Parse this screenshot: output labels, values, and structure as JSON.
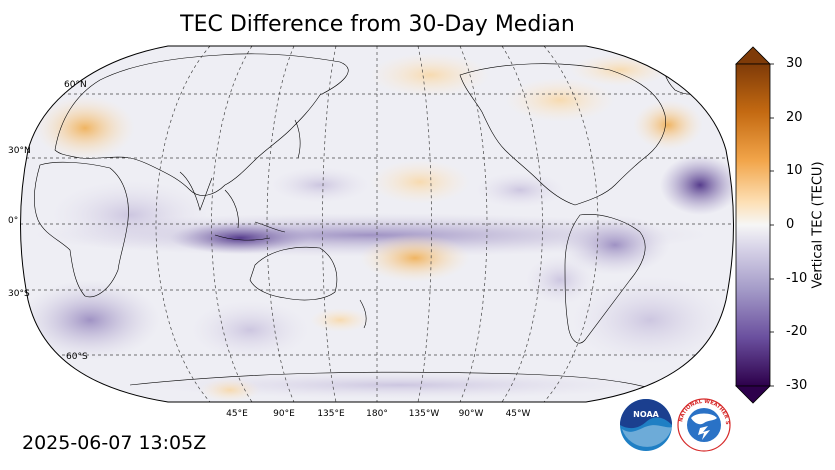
{
  "title": "TEC Difference from 30-Day Median",
  "timestamp": "2025-06-07 13:05Z",
  "map": {
    "projection": "Robinson",
    "central_longitude": "180°",
    "lat_labels": [
      "60°N",
      "30°N",
      "0°",
      "30°S",
      "60°S"
    ],
    "lon_labels": [
      "45°E",
      "90°E",
      "135°E",
      "180°",
      "135°W",
      "90°W",
      "45°W"
    ],
    "gridlines": "dashed"
  },
  "colorbar": {
    "label": "Vertical TEC (TECU)",
    "ticks": [
      "30",
      "20",
      "10",
      "0",
      "-10",
      "-20",
      "-30"
    ],
    "range": [
      -30,
      30
    ],
    "colormap": "PuOr_r",
    "extend": "both"
  },
  "logos": {
    "noaa_text": "NOAA",
    "nws_text": "NATIONAL WEATHER SERVICE"
  },
  "colors": {
    "positive": "#e08a1a",
    "negative": "#5a3d8f",
    "neutral": "#f1f1f5"
  }
}
